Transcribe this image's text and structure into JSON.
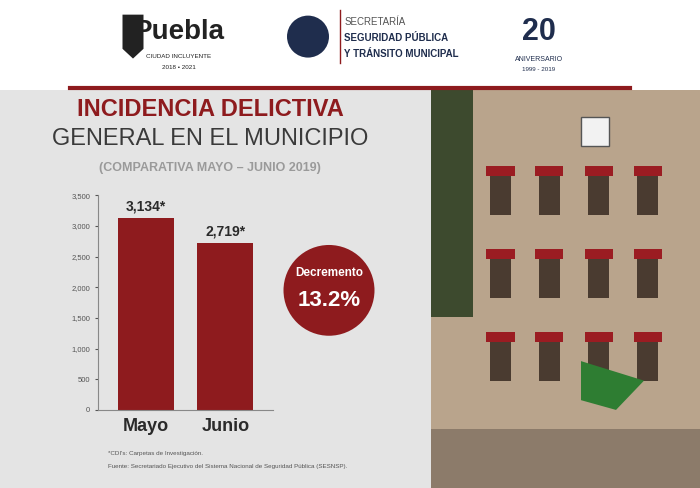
{
  "chart_data": {
    "type": "bar",
    "title": [
      "INCIDENCIA DELICTIVA",
      "GENERAL EN EL MUNICIPIO"
    ],
    "subtitle": "(COMPARATIVA MAYO – JUNIO 2019)",
    "categories": [
      "Mayo",
      "Junio"
    ],
    "values": [
      3134,
      2719
    ],
    "value_labels": [
      "3,134*",
      "2,719*"
    ],
    "data_labels": true,
    "color": "#8e1b1e",
    "ylim": [
      0,
      3500
    ],
    "yticks": [
      0,
      500,
      {
        "value": 1000,
        "label": "1,000"
      },
      {
        "value": 1500,
        "label": "1,500"
      },
      {
        "value": 2000,
        "label": "2,000"
      },
      {
        "value": 2500,
        "label": "2,500"
      },
      {
        "value": 3000,
        "label": "3,000"
      },
      {
        "value": 3500,
        "label": "3,500"
      }
    ],
    "grid": false,
    "annotation": [
      "Decremento",
      "13.2%"
    ],
    "notes": [
      "*CDI's: Carpetas de Investigación.",
      "Fuente: Secretariado Ejecutivo del Sistema Nacional de Seguridad Pública (SESNSP)."
    ]
  },
  "header": {
    "logo": "Puebla",
    "logo_subtitle": "CIUDAD INCLUYENTE",
    "logo_years": "2018 • 2021",
    "agency": [
      "SECRETARÍA",
      "SEGURIDAD PÚBLICA",
      "Y TRÁNSITO MUNICIPAL"
    ],
    "anniversary": "20",
    "anniversary_label": "ANIVERSARIO",
    "anniversary_years": "1999 - 2019"
  }
}
